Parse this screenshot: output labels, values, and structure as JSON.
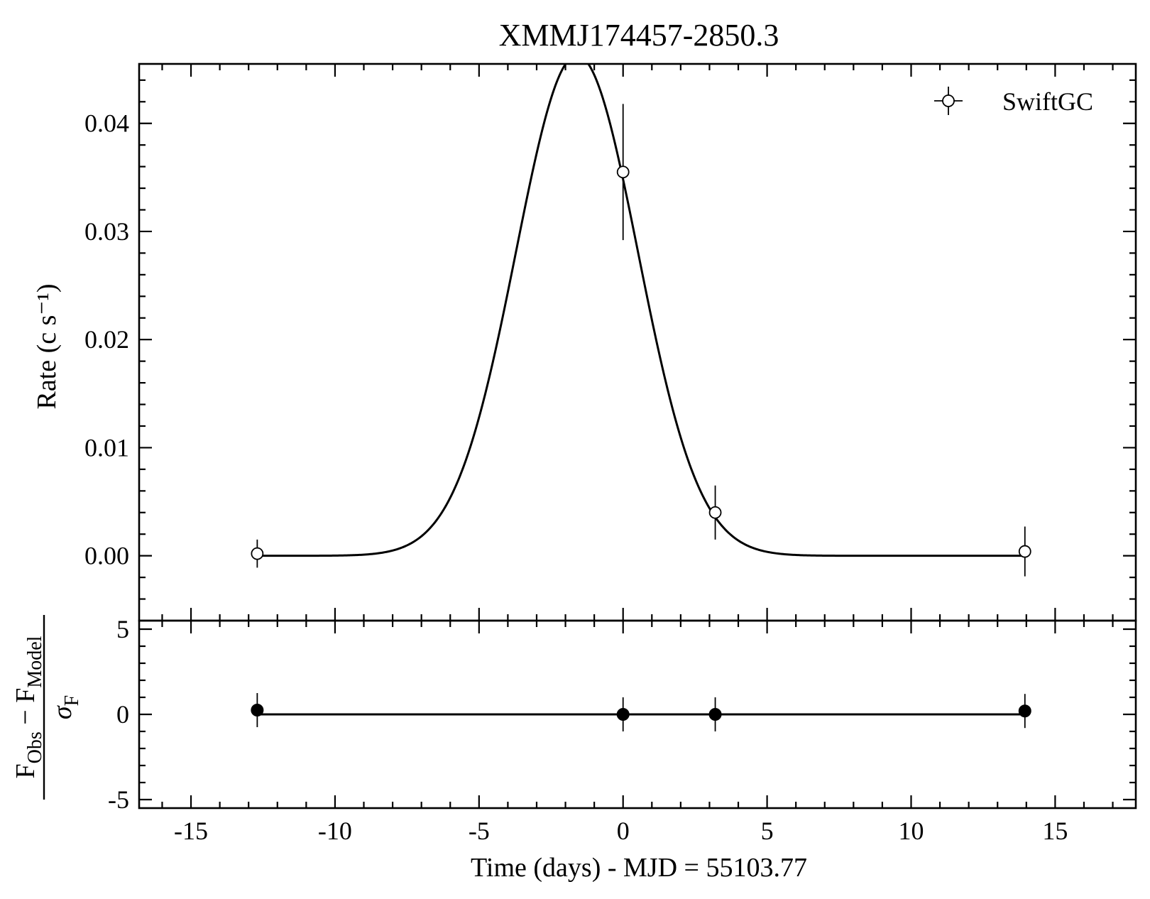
{
  "chart_data": {
    "title": "XMMJ174457-2850.3",
    "xlabel": "Time (days) - MJD = 55103.77",
    "xlim": [
      -16.8,
      17.8
    ],
    "x_ticks": [
      -15,
      -10,
      -5,
      0,
      5,
      10,
      15
    ],
    "x_tick_labels": [
      "-15",
      "-10",
      "-5",
      "0",
      "5",
      "10",
      "15"
    ],
    "panels": [
      {
        "id": "main",
        "type": "scatter",
        "ylabel": "Rate (c s⁻¹)",
        "ylim": [
          -0.006,
          0.0455
        ],
        "y_ticks": [
          0.0,
          0.01,
          0.02,
          0.03,
          0.04
        ],
        "y_tick_labels": [
          "0.00",
          "0.01",
          "0.02",
          "0.03",
          "0.04"
        ],
        "legend": {
          "label": "SwiftGC",
          "placement": "top-right"
        },
        "series": [
          {
            "name": "SwiftGC",
            "marker": "open-circle",
            "x": [
              -12.7,
              0.0,
              3.2,
              13.95
            ],
            "y": [
              0.0002,
              0.0355,
              0.004,
              0.0004
            ],
            "yerr": [
              0.0013,
              0.0063,
              0.0025,
              0.0023
            ]
          }
        ],
        "model": {
          "type": "line",
          "shape": "gaussian",
          "amplitude": 0.0463,
          "center": -1.6,
          "sigma": 2.12,
          "x_range": [
            -12.7,
            13.95
          ]
        }
      },
      {
        "id": "residuals",
        "type": "scatter",
        "ylabel_parts": {
          "obs": "F",
          "obs_sub": "Obs",
          "minus": "−",
          "model": "F",
          "model_sub": "Model",
          "sigma": "σ",
          "sigma_sub": "F"
        },
        "ylim": [
          -5.5,
          5.5
        ],
        "y_ticks": [
          -5,
          0,
          5
        ],
        "y_tick_labels": [
          "-5",
          "0",
          "5"
        ],
        "series": [
          {
            "name": "",
            "marker": "filled-circle",
            "x": [
              -12.7,
              0.0,
              3.2,
              13.95
            ],
            "y": [
              0.25,
              0.0,
              0.0,
              0.2
            ],
            "yerr": [
              1.0,
              1.0,
              1.0,
              1.0
            ]
          }
        ],
        "model": {
          "type": "line",
          "y": 0,
          "x_range": [
            -12.7,
            13.95
          ]
        }
      }
    ]
  }
}
